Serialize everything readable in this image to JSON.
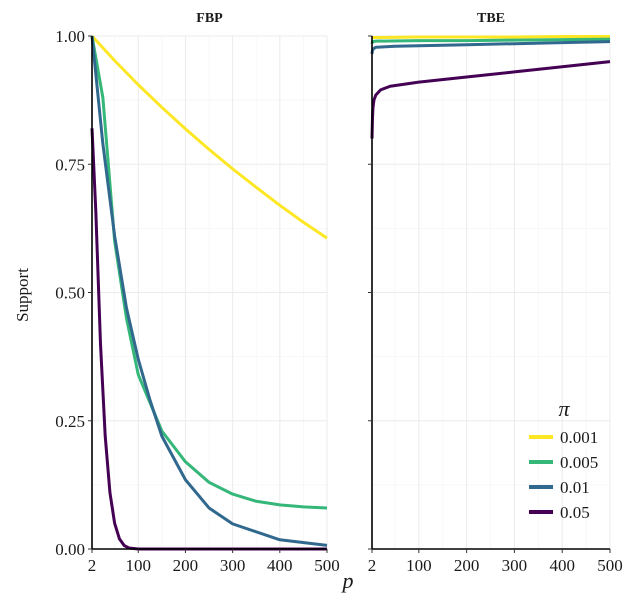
{
  "chart_data": {
    "type": "line",
    "ylabel": "Support",
    "xlabel": "p",
    "xlim": [
      2,
      500
    ],
    "ylim": [
      0,
      1
    ],
    "x_ticks": [
      "2",
      "100",
      "200",
      "300",
      "400",
      "500"
    ],
    "y_ticks": [
      "0.00",
      "0.25",
      "0.50",
      "0.75",
      "1.00"
    ],
    "legend": {
      "title": "π",
      "position": "bottom-right of TBE panel",
      "entries": [
        {
          "label": "0.001",
          "color": "#fde725"
        },
        {
          "label": "0.005",
          "color": "#35b779"
        },
        {
          "label": "0.01",
          "color": "#31688e"
        },
        {
          "label": "0.05",
          "color": "#440154"
        }
      ]
    },
    "panels": [
      {
        "title": "FBP",
        "series": [
          {
            "name": "0.001",
            "color": "#fde725",
            "x": [
              2,
              50,
              100,
              150,
              200,
              250,
              300,
              350,
              400,
              450,
              500
            ],
            "y": [
              1.0,
              0.952,
              0.905,
              0.861,
              0.819,
              0.779,
              0.741,
              0.705,
              0.67,
              0.637,
              0.606
            ]
          },
          {
            "name": "0.005",
            "color": "#35b779",
            "x": [
              2,
              25,
              50,
              75,
              100,
              150,
              200,
              250,
              300,
              350,
              400,
              450,
              500
            ],
            "y": [
              1.0,
              0.88,
              0.6,
              0.45,
              0.34,
              0.23,
              0.17,
              0.13,
              0.107,
              0.093,
              0.086,
              0.082,
              0.08
            ]
          },
          {
            "name": "0.01",
            "color": "#31688e",
            "x": [
              2,
              25,
              50,
              75,
              100,
              125,
              150,
              200,
              250,
              300,
              400,
              500
            ],
            "y": [
              1.0,
              0.79,
              0.61,
              0.47,
              0.37,
              0.29,
              0.22,
              0.135,
              0.08,
              0.049,
              0.018,
              0.007
            ]
          },
          {
            "name": "0.05",
            "color": "#440154",
            "x": [
              2,
              10,
              20,
              30,
              40,
              50,
              60,
              70,
              80,
              100,
              200,
              300,
              400,
              500
            ],
            "y": [
              0.82,
              0.66,
              0.4,
              0.22,
              0.11,
              0.05,
              0.02,
              0.007,
              0.002,
              0.0,
              0.0,
              0.0,
              0.0,
              0.0
            ]
          }
        ]
      },
      {
        "title": "TBE",
        "series": [
          {
            "name": "0.001",
            "color": "#fde725",
            "x": [
              2,
              3,
              10,
              100,
              200,
              300,
              400,
              500
            ],
            "y": [
              0.996,
              0.997,
              0.997,
              0.998,
              0.998,
              0.998,
              0.999,
              0.999
            ]
          },
          {
            "name": "0.005",
            "color": "#35b779",
            "x": [
              2,
              3,
              10,
              100,
              200,
              300,
              400,
              500
            ],
            "y": [
              0.985,
              0.989,
              0.99,
              0.991,
              0.991,
              0.992,
              0.993,
              0.994
            ]
          },
          {
            "name": "0.01",
            "color": "#31688e",
            "x": [
              2,
              3,
              5,
              10,
              50,
              100,
              200,
              300,
              400,
              500
            ],
            "y": [
              0.965,
              0.972,
              0.975,
              0.978,
              0.98,
              0.981,
              0.983,
              0.985,
              0.987,
              0.989
            ]
          },
          {
            "name": "0.05",
            "color": "#440154",
            "x": [
              2,
              3,
              4,
              6,
              10,
              20,
              40,
              100,
              200,
              300,
              400,
              500
            ],
            "y": [
              0.8,
              0.84,
              0.86,
              0.875,
              0.885,
              0.895,
              0.902,
              0.91,
              0.92,
              0.93,
              0.94,
              0.95
            ]
          }
        ]
      }
    ]
  }
}
